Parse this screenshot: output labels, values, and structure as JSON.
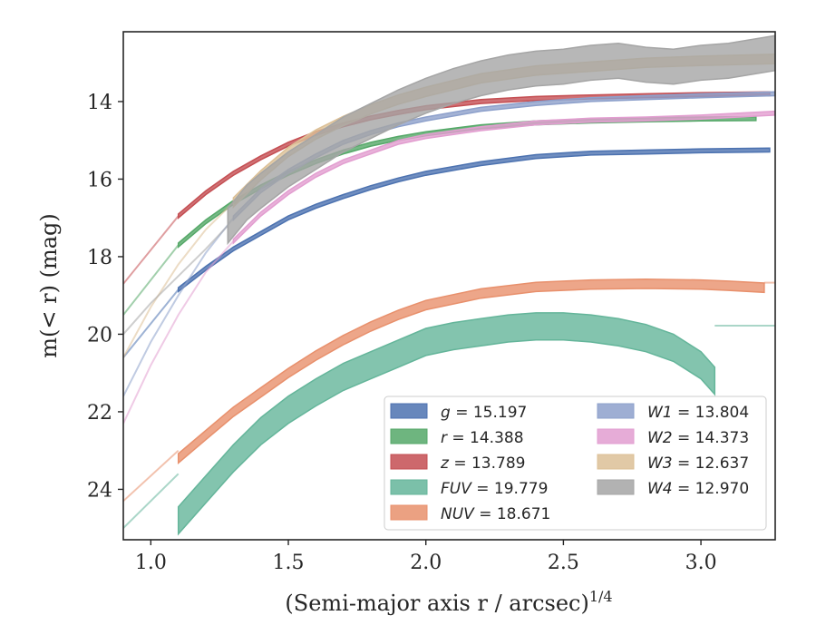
{
  "chart_data": {
    "type": "line",
    "xlabel": "(Semi-major axis r / arcsec)",
    "xlabel_sup": "1/4",
    "ylabel": "m(< r) (mag)",
    "xlim": [
      0.9,
      3.27
    ],
    "ylim": [
      25.3,
      12.2
    ],
    "y_inverted": true,
    "xticks": [
      1.0,
      1.5,
      2.0,
      2.5,
      3.0
    ],
    "xtick_labels": [
      "1.0",
      "1.5",
      "2.0",
      "2.5",
      "3.0"
    ],
    "yticks": [
      14,
      16,
      18,
      20,
      22,
      24
    ],
    "ytick_labels": [
      "14",
      "16",
      "18",
      "20",
      "22",
      "24"
    ],
    "grid": false,
    "legend_position": "lower-right",
    "legend_columns": 2,
    "series": [
      {
        "name": "g = 15.197",
        "label_var": "g",
        "label_val": " = 15.197",
        "color": "#4c72b0",
        "x": [
          1.1,
          1.2,
          1.3,
          1.4,
          1.5,
          1.6,
          1.7,
          1.8,
          1.9,
          2.0,
          2.2,
          2.4,
          2.6,
          2.8,
          3.0,
          3.25
        ],
        "y": [
          18.85,
          18.3,
          17.8,
          17.4,
          17.0,
          16.7,
          16.45,
          16.22,
          16.02,
          15.85,
          15.6,
          15.42,
          15.33,
          15.3,
          15.27,
          15.25
        ],
        "ext_x": [
          0.9,
          1.1
        ],
        "ext_y": [
          20.6,
          18.85
        ],
        "width": 0.05
      },
      {
        "name": "r = 14.388",
        "label_var": "r",
        "label_val": " = 14.388",
        "color": "#55a868",
        "x": [
          1.1,
          1.2,
          1.3,
          1.4,
          1.5,
          1.6,
          1.7,
          1.8,
          1.9,
          2.0,
          2.2,
          2.4,
          2.6,
          2.8,
          3.0,
          3.2
        ],
        "y": [
          17.7,
          17.1,
          16.6,
          16.2,
          15.85,
          15.55,
          15.3,
          15.1,
          14.95,
          14.83,
          14.65,
          14.55,
          14.5,
          14.47,
          14.45,
          14.44
        ],
        "ext_x": [
          0.9,
          1.1
        ],
        "ext_y": [
          19.5,
          17.7
        ],
        "width": 0.05
      },
      {
        "name": "z = 13.789",
        "label_var": "z",
        "label_val": " = 13.789",
        "color": "#c44e52",
        "x": [
          1.1,
          1.2,
          1.3,
          1.4,
          1.5,
          1.6,
          1.7,
          1.8,
          1.9,
          2.0,
          2.2,
          2.4,
          2.6,
          2.8,
          3.0,
          3.25
        ],
        "y": [
          16.95,
          16.35,
          15.85,
          15.45,
          15.1,
          14.82,
          14.6,
          14.42,
          14.28,
          14.16,
          14.0,
          13.92,
          13.88,
          13.85,
          13.82,
          13.8
        ],
        "ext_x": [
          0.9,
          1.1
        ],
        "ext_y": [
          18.7,
          16.95
        ],
        "width": 0.05
      },
      {
        "name": "FUV = 19.779",
        "label_var": "FUV",
        "label_val": " = 19.779",
        "color": "#64b59a",
        "x": [
          1.1,
          1.2,
          1.3,
          1.4,
          1.5,
          1.6,
          1.7,
          1.8,
          1.9,
          2.0,
          2.1,
          2.2,
          2.3,
          2.4,
          2.5,
          2.6,
          2.7,
          2.8,
          2.9,
          3.0,
          3.05
        ],
        "y": [
          24.8,
          24.0,
          23.2,
          22.5,
          21.95,
          21.5,
          21.1,
          20.8,
          20.5,
          20.2,
          20.05,
          19.95,
          19.85,
          19.8,
          19.8,
          19.85,
          19.95,
          20.1,
          20.35,
          20.8,
          21.2
        ],
        "ext_x": [
          0.9,
          1.1
        ],
        "ext_y": [
          25.0,
          23.6
        ],
        "flat_from": 3.05,
        "flat_y": 19.78,
        "width": 0.35
      },
      {
        "name": "NUV = 18.671",
        "label_var": "NUV",
        "label_val": " = 18.671",
        "color": "#e8906c",
        "x": [
          1.1,
          1.2,
          1.3,
          1.4,
          1.5,
          1.6,
          1.7,
          1.8,
          1.9,
          2.0,
          2.2,
          2.4,
          2.6,
          2.8,
          3.0,
          3.1,
          3.23
        ],
        "y": [
          23.2,
          22.6,
          22.0,
          21.5,
          21.0,
          20.55,
          20.15,
          19.8,
          19.5,
          19.25,
          18.95,
          18.78,
          18.72,
          18.7,
          18.72,
          18.75,
          18.8
        ],
        "ext_x": [
          0.9,
          1.1
        ],
        "ext_y": [
          24.3,
          23.0
        ],
        "flat_y": 18.67,
        "width": 0.12
      },
      {
        "name": "W1 = 13.804",
        "label_var": "W1",
        "label_val": " = 13.804",
        "color": "#8da0cb",
        "x": [
          1.3,
          1.4,
          1.5,
          1.6,
          1.7,
          1.8,
          1.9,
          2.0,
          2.2,
          2.4,
          2.6,
          2.8,
          3.0,
          3.27
        ],
        "y": [
          17.0,
          16.3,
          15.8,
          15.4,
          15.05,
          14.8,
          14.6,
          14.45,
          14.2,
          14.05,
          13.95,
          13.9,
          13.85,
          13.8
        ],
        "ext_x": [
          0.9,
          1.0,
          1.1,
          1.2,
          1.3
        ],
        "ext_y": [
          21.6,
          20.2,
          19.0,
          17.9,
          17.0
        ],
        "width": 0.05
      },
      {
        "name": "W2 = 14.373",
        "label_var": "W2",
        "label_val": " = 14.373",
        "color": "#e29ed0",
        "x": [
          1.3,
          1.4,
          1.5,
          1.6,
          1.7,
          1.8,
          1.9,
          2.0,
          2.2,
          2.4,
          2.6,
          2.8,
          3.0,
          3.27
        ],
        "y": [
          17.6,
          16.9,
          16.35,
          15.9,
          15.55,
          15.3,
          15.05,
          14.9,
          14.7,
          14.55,
          14.48,
          14.45,
          14.4,
          14.3
        ],
        "ext_x": [
          0.9,
          1.0,
          1.1,
          1.2,
          1.3
        ],
        "ext_y": [
          22.3,
          20.8,
          19.5,
          18.4,
          17.6
        ],
        "width": 0.05
      },
      {
        "name": "W3 = 12.637",
        "label_var": "W3",
        "label_val": " = 12.637",
        "color": "#dcc096",
        "x": [
          1.3,
          1.4,
          1.5,
          1.6,
          1.7,
          1.8,
          1.9,
          2.0,
          2.2,
          2.4,
          2.6,
          2.8,
          3.0,
          3.27
        ],
        "y": [
          16.6,
          15.9,
          15.3,
          14.85,
          14.5,
          14.2,
          13.95,
          13.75,
          13.4,
          13.2,
          13.1,
          13.0,
          12.95,
          12.9
        ],
        "ext_x": [
          0.9,
          1.0,
          1.1,
          1.2,
          1.3
        ],
        "ext_y": [
          20.6,
          19.3,
          18.2,
          17.3,
          16.6
        ],
        "width": 0.12
      },
      {
        "name": "W4 = 12.970",
        "label_var": "W4",
        "label_val": " = 12.970",
        "color": "#a5a5a5",
        "x": [
          1.28,
          1.35,
          1.4,
          1.5,
          1.6,
          1.7,
          1.8,
          1.9,
          2.0,
          2.1,
          2.2,
          2.3,
          2.4,
          2.5,
          2.6,
          2.7,
          2.8,
          2.9,
          3.0,
          3.1,
          3.27
        ],
        "y": [
          17.2,
          16.6,
          16.3,
          15.75,
          15.3,
          14.85,
          14.5,
          14.15,
          13.85,
          13.6,
          13.4,
          13.25,
          13.15,
          13.1,
          13.0,
          12.95,
          13.05,
          13.1,
          13.0,
          12.95,
          12.75
        ],
        "ext_x": [
          0.9,
          1.0,
          1.1,
          1.2,
          1.28
        ],
        "ext_y": [
          20.0,
          19.2,
          18.5,
          17.8,
          17.2
        ],
        "width": 0.45
      }
    ]
  }
}
